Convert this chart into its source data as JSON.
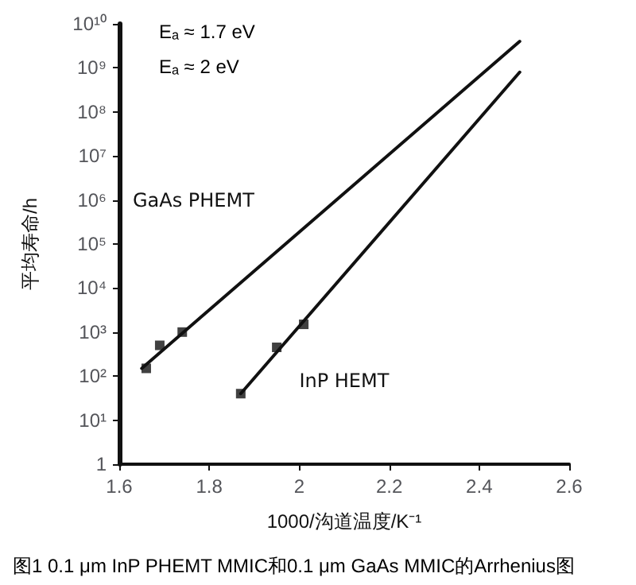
{
  "chart_data": {
    "type": "line",
    "xlabel": "1000/沟道温度/K⁻¹",
    "ylabel": "平均寿命/h",
    "log": "y",
    "grid": false,
    "legend": false,
    "xlim": [
      1.6,
      2.6
    ],
    "xticks": [
      {
        "value": 1.6,
        "label": "1.6"
      },
      1.8,
      2,
      2.2,
      2.4,
      2.6
    ],
    "ylim": [
      1,
      10000000000
    ],
    "yticks": [
      1,
      {
        "value": 10,
        "label": "10¹"
      },
      {
        "value": 100,
        "label": "10²"
      },
      {
        "value": 1000,
        "label": "10³"
      },
      {
        "value": 10000,
        "label": "10⁴"
      },
      {
        "value": 100000,
        "label": "10⁵"
      },
      {
        "value": 1000000,
        "label": "10⁶"
      },
      {
        "value": 10000000,
        "label": "10⁷"
      },
      {
        "value": 100000000,
        "label": "10⁸"
      },
      {
        "value": 1000000000,
        "label": "10⁹"
      },
      {
        "value": 10000000000,
        "label": "10¹⁰"
      }
    ],
    "series": [
      {
        "name": "GaAs PHEMT",
        "color": "#111111",
        "marker": "none",
        "line_style": "solid",
        "x": [
          1.65,
          2.49
        ],
        "values": [
          150,
          4000000000
        ]
      },
      {
        "name": "InP HEMT",
        "color": "#111111",
        "marker": "none",
        "line_style": "solid",
        "x": [
          1.87,
          2.49
        ],
        "values": [
          40,
          800000000
        ]
      },
      {
        "type": "scatter",
        "color": "#111111",
        "marker": "square",
        "x": [
          1.66,
          1.69,
          1.74
        ],
        "values": [
          150,
          500,
          1000
        ]
      },
      {
        "type": "scatter",
        "color": "#111111",
        "marker": "square",
        "x": [
          1.87,
          1.95,
          2.01
        ],
        "values": [
          40,
          450,
          1500
        ]
      }
    ],
    "annotations": [
      "Eₐ ≈ 1.7 eV",
      "Eₐ ≈ 2 eV",
      "图1 0.1 μm InP PHEMT MMIC和0.1 μm GaAs MMIC的Arrhenius图"
    ]
  }
}
